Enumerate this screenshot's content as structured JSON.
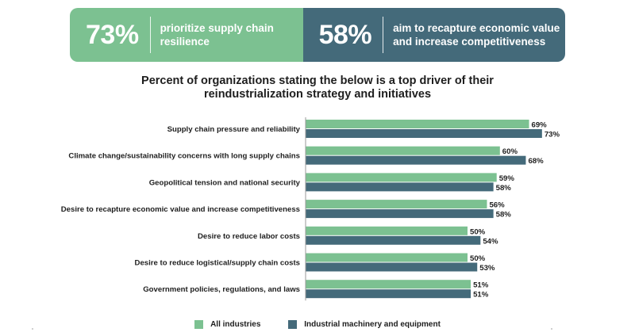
{
  "stats": [
    {
      "number": "73%",
      "text": "prioritize supply chain resilience",
      "color": "#7cc191"
    },
    {
      "number": "58%",
      "text": "aim to recapture economic value and increase competitiveness",
      "color": "#446a7a"
    }
  ],
  "chart_data": {
    "type": "bar",
    "orientation": "horizontal",
    "title": "Percent of organizations stating the below is a top driver of their reindustrialization strategy and initiatives",
    "title_lines": [
      "Percent of organizations stating the below is a top driver of their",
      "reindustrialization strategy and initiatives"
    ],
    "categories": [
      "Supply chain pressure and reliability",
      "Climate change/sustainability concerns with long supply chains",
      "Geopolitical tension and national security",
      "Desire to recapture economic value and increase competitiveness",
      "Desire to reduce labor costs",
      "Desire to reduce logistical/supply chain costs",
      "Government policies, regulations, and laws"
    ],
    "series": [
      {
        "name": "All industries",
        "color": "#7cc191",
        "values": [
          69,
          60,
          59,
          56,
          50,
          50,
          51
        ]
      },
      {
        "name": "Industrial machinery and equipment",
        "color": "#446a7a",
        "values": [
          73,
          68,
          58,
          58,
          54,
          53,
          51
        ]
      }
    ],
    "value_suffix": "%",
    "xlim": [
      0,
      100
    ],
    "legend": "bottom-center",
    "grid": false
  }
}
